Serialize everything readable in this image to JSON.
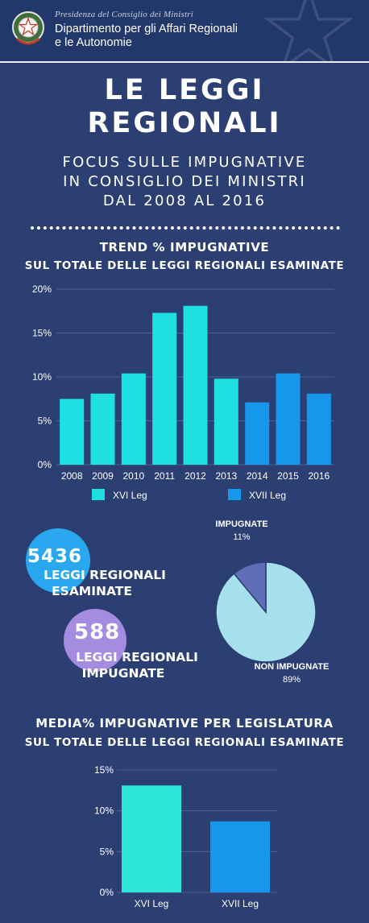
{
  "header": {
    "subtitle": "Presidenza del Consiglio dei Ministri",
    "title_line1": "Dipartimento per gli Affari Regionali",
    "title_line2": "e le Autonomie"
  },
  "title": {
    "line1": "LE LEGGI",
    "line2": "REGIONALI"
  },
  "subtitle": {
    "line1": "FOCUS SULLE IMPUGNATIVE",
    "line2": "IN CONSIGLIO DEI MINISTRI",
    "line3": "DAL 2008 AL 2016"
  },
  "section1": {
    "title_line1": "TREND % IMPUGNATIVE",
    "title_line2": "SUL TOTALE DELLE LEGGI REGIONALI ESAMINATE"
  },
  "stats": {
    "examined_number": "5436",
    "examined_label_line1": "LEGGI REGIONALI",
    "examined_label_line2": "ESAMINATE",
    "challenged_number": "588",
    "challenged_label_line1": "LEGGI REGIONALI",
    "challenged_label_line2": "IMPUGNATE"
  },
  "section2": {
    "title_line1": "MEDIA% IMPUGNATIVE PER LEGISLATURA",
    "title_line2": "SUL TOTALE DELLE LEGGI REGIONALI ESAMINATE"
  },
  "colors": {
    "background": "#2c3f73",
    "xvi": "#1ee0e0",
    "xvii": "#1597ec",
    "pie_main": "#a6e0ec",
    "pie_slice": "#5e6fb8",
    "bubble_blue": "#29a8f0",
    "bubble_purple": "#a58ce0"
  },
  "chart_data": [
    {
      "type": "bar",
      "categories": [
        "2008",
        "2009",
        "2010",
        "2011",
        "2012",
        "2013",
        "2014",
        "2015",
        "2016"
      ],
      "values": [
        7.5,
        8.1,
        10.4,
        17.3,
        18.1,
        9.8,
        7.1,
        10.4,
        8.1
      ],
      "groups": [
        "XVI Leg",
        "XVI Leg",
        "XVI Leg",
        "XVI Leg",
        "XVI Leg",
        "XVI Leg",
        "XVII Leg",
        "XVII Leg",
        "XVII Leg"
      ],
      "legend": [
        {
          "name": "XVI Leg",
          "color": "#1ee0e0"
        },
        {
          "name": "XVII Leg",
          "color": "#1597ec"
        }
      ],
      "yticks": [
        "0%",
        "5%",
        "10%",
        "15%",
        "20%"
      ],
      "ylim": [
        0,
        20
      ],
      "grid": true,
      "legend_position": "bottom"
    },
    {
      "type": "pie",
      "slices": [
        {
          "label": "IMPUGNATE",
          "value": 11,
          "pct_label": "11%",
          "color": "#5e6fb8"
        },
        {
          "label": "NON IMPUGNATE",
          "value": 89,
          "pct_label": "89%",
          "color": "#a6e0ec"
        }
      ]
    },
    {
      "type": "bar",
      "categories": [
        "XVI Leg",
        "XVII Leg"
      ],
      "values": [
        13.1,
        8.7
      ],
      "colors": [
        "#2ee6d6",
        "#1597ec"
      ],
      "yticks": [
        "0%",
        "5%",
        "10%",
        "15%"
      ],
      "ylim": [
        0,
        15
      ],
      "grid": true
    }
  ]
}
